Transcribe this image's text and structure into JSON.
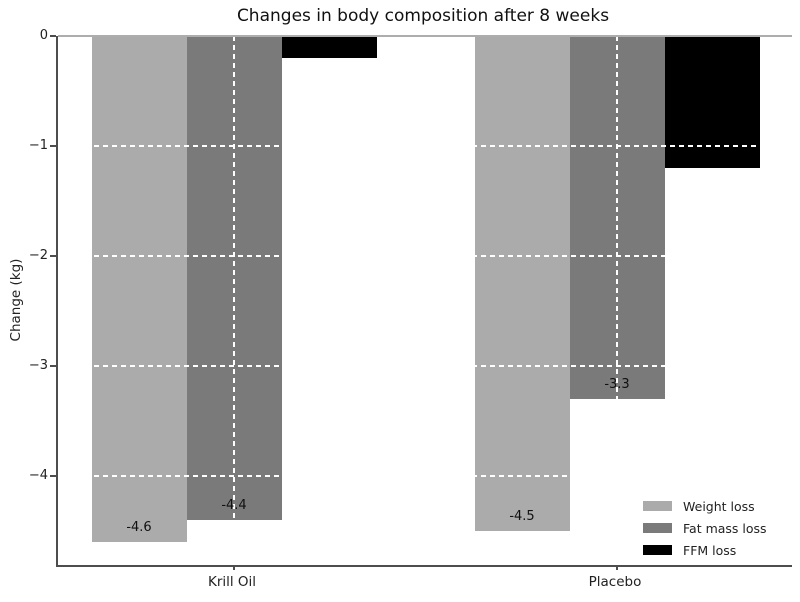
{
  "title": "Changes in body composition after 8 weeks",
  "chart_data": {
    "type": "bar",
    "orientation": "vertical",
    "title": "Changes in body composition after 8 weeks",
    "xlabel": "",
    "ylabel": "Change (kg)",
    "categories": [
      "Krill Oil",
      "Placebo"
    ],
    "series": [
      {
        "name": "Weight loss",
        "color": "#ababab",
        "values": [
          -4.6,
          -4.5
        ],
        "value_labels": [
          "-4.6",
          "-4.5"
        ],
        "show_value_labels": true
      },
      {
        "name": "Fat mass loss",
        "color": "#7a7a7a",
        "values": [
          -4.4,
          -3.3
        ],
        "value_labels": [
          "-4.4",
          "-3.3"
        ],
        "show_value_labels": true
      },
      {
        "name": "FFM loss",
        "color": "#000000",
        "values": [
          -0.2,
          -1.2
        ],
        "value_labels": [],
        "show_value_labels": false
      }
    ],
    "ylim": [
      -4.81,
      0
    ],
    "yticks": [
      0,
      -1,
      -2,
      -3,
      -4
    ],
    "ytick_labels": [
      "0",
      "−1",
      "−2",
      "−3",
      "−4"
    ],
    "grid": {
      "visible": true,
      "color": "#ffffff",
      "style": "dashed",
      "horizontal_lines_at": [
        -1,
        -2,
        -3,
        -4
      ],
      "vertical_lines_at_category_centers": true
    },
    "zero_line": {
      "visible": true,
      "color": "#adadad"
    },
    "legend": {
      "position": "lower right",
      "frame": false,
      "entries": [
        "Weight loss",
        "Fat mass loss",
        "FFM loss"
      ]
    }
  }
}
